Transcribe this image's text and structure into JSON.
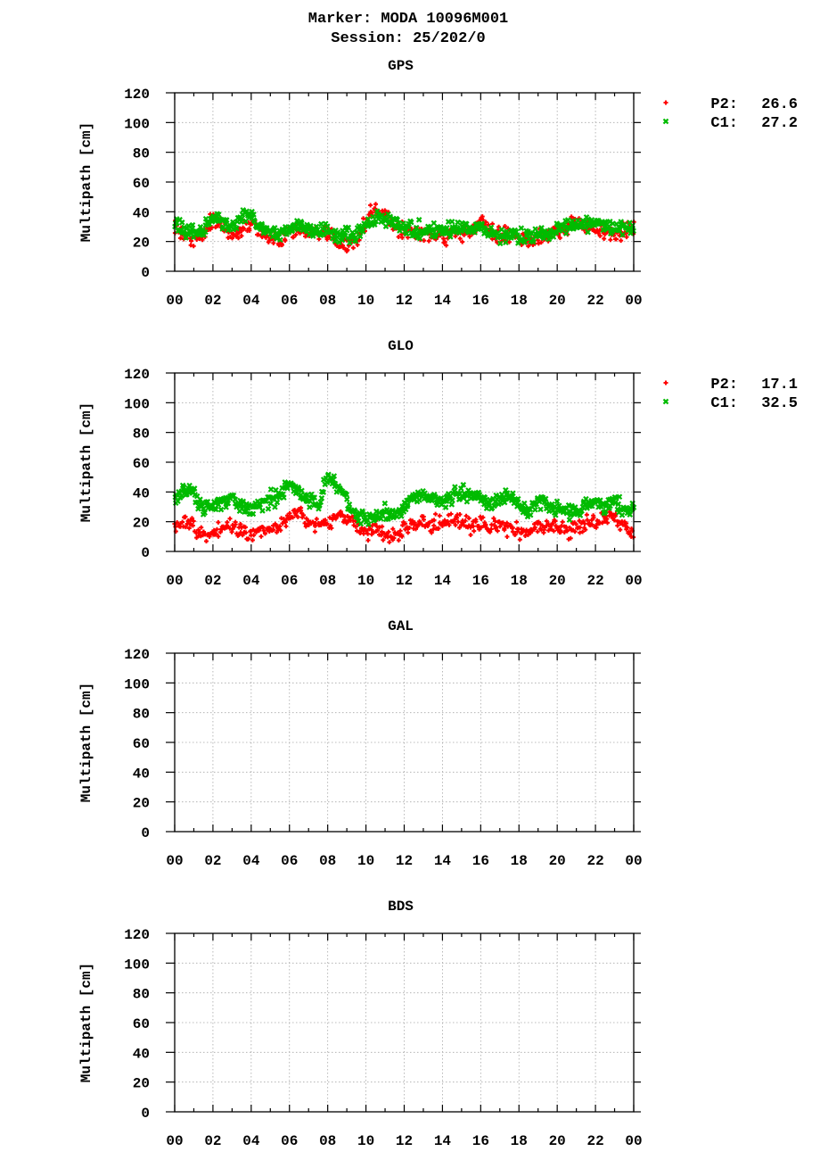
{
  "figure": {
    "title_line1": "Marker: MODA 10096M001",
    "title_line2": "Session: 25/202/0"
  },
  "chart_data": [
    {
      "type": "scatter",
      "title": "GPS",
      "xlabel": "",
      "ylabel": "Multipath [cm]",
      "xlim": [
        0,
        24
      ],
      "ylim": [
        0,
        120
      ],
      "x_tick_labels": [
        "00",
        "02",
        "04",
        "06",
        "08",
        "10",
        "12",
        "14",
        "16",
        "18",
        "20",
        "22",
        "00"
      ],
      "y_tick_labels": [
        "0",
        "20",
        "40",
        "60",
        "80",
        "100",
        "120"
      ],
      "grid": true,
      "legend_placement": "top-right outside",
      "series": [
        {
          "name": "P2",
          "label": "P2:",
          "rms": "26.6",
          "marker": "+",
          "color": "#ff0000",
          "x": [
            0.0,
            0.5,
            1.0,
            1.5,
            2.0,
            2.5,
            3.0,
            3.5,
            4.0,
            4.5,
            5.0,
            5.5,
            6.0,
            6.5,
            7.0,
            7.5,
            8.0,
            8.5,
            9.0,
            9.5,
            10.0,
            10.5,
            11.0,
            11.5,
            12.0,
            12.5,
            13.0,
            13.5,
            14.0,
            14.5,
            15.0,
            15.5,
            16.0,
            16.5,
            17.0,
            17.5,
            18.0,
            18.5,
            19.0,
            19.5,
            20.0,
            20.5,
            21.0,
            21.5,
            22.0,
            22.5,
            23.0,
            23.5,
            24.0
          ],
          "y": [
            30,
            25,
            22,
            24,
            35,
            31,
            24,
            28,
            33,
            26,
            22,
            20,
            25,
            27,
            26,
            24,
            26,
            20,
            18,
            18,
            34,
            42,
            38,
            30,
            27,
            26,
            25,
            24,
            22,
            25,
            26,
            25,
            36,
            28,
            24,
            25,
            22,
            20,
            22,
            24,
            27,
            30,
            34,
            30,
            28,
            26,
            24,
            26,
            30
          ]
        },
        {
          "name": "C1",
          "label": "C1:",
          "rms": "27.2",
          "marker": "x",
          "color": "#00bb00",
          "x": [
            0.0,
            0.5,
            1.0,
            1.5,
            2.0,
            2.5,
            3.0,
            3.5,
            4.0,
            4.5,
            5.0,
            5.5,
            6.0,
            6.5,
            7.0,
            7.5,
            8.0,
            8.5,
            9.0,
            9.5,
            10.0,
            10.5,
            11.0,
            11.5,
            12.0,
            12.5,
            13.0,
            13.5,
            14.0,
            14.5,
            15.0,
            15.5,
            16.0,
            16.5,
            17.0,
            17.5,
            18.0,
            18.5,
            19.0,
            19.5,
            20.0,
            20.5,
            21.0,
            21.5,
            22.0,
            22.5,
            23.0,
            23.5,
            24.0
          ],
          "y": [
            33,
            28,
            26,
            28,
            36,
            34,
            30,
            36,
            38,
            30,
            27,
            25,
            29,
            30,
            28,
            27,
            28,
            24,
            23,
            24,
            32,
            36,
            36,
            32,
            29,
            28,
            28,
            27,
            27,
            29,
            30,
            28,
            30,
            27,
            25,
            24,
            24,
            22,
            24,
            26,
            28,
            30,
            31,
            32,
            33,
            31,
            29,
            28,
            29
          ]
        }
      ]
    },
    {
      "type": "scatter",
      "title": "GLO",
      "xlabel": "",
      "ylabel": "Multipath [cm]",
      "xlim": [
        0,
        24
      ],
      "ylim": [
        0,
        120
      ],
      "x_tick_labels": [
        "00",
        "02",
        "04",
        "06",
        "08",
        "10",
        "12",
        "14",
        "16",
        "18",
        "20",
        "22",
        "00"
      ],
      "y_tick_labels": [
        "0",
        "20",
        "40",
        "60",
        "80",
        "100",
        "120"
      ],
      "grid": true,
      "legend_placement": "top-right outside",
      "series": [
        {
          "name": "P2",
          "label": "P2:",
          "rms": "17.1",
          "marker": "+",
          "color": "#ff0000",
          "x": [
            0.0,
            0.5,
            1.0,
            1.5,
            2.0,
            2.5,
            3.0,
            3.5,
            4.0,
            4.5,
            5.0,
            5.5,
            6.0,
            6.5,
            7.0,
            7.5,
            8.0,
            8.5,
            9.0,
            9.5,
            10.0,
            10.5,
            11.0,
            11.5,
            12.0,
            12.5,
            13.0,
            13.5,
            14.0,
            14.5,
            15.0,
            15.5,
            16.0,
            16.5,
            17.0,
            17.5,
            18.0,
            18.5,
            19.0,
            19.5,
            20.0,
            20.5,
            21.0,
            21.5,
            22.0,
            22.5,
            23.0,
            23.5,
            24.0
          ],
          "y": [
            17,
            20,
            16,
            10,
            12,
            16,
            18,
            15,
            11,
            14,
            16,
            18,
            24,
            27,
            20,
            18,
            20,
            24,
            22,
            18,
            12,
            14,
            12,
            10,
            14,
            18,
            20,
            18,
            19,
            20,
            21,
            17,
            18,
            16,
            18,
            16,
            14,
            12,
            16,
            18,
            15,
            14,
            16,
            19,
            20,
            22,
            22,
            17,
            12
          ]
        },
        {
          "name": "C1",
          "label": "C1:",
          "rms": "32.5",
          "marker": "x",
          "color": "#00bb00",
          "x": [
            0.0,
            0.5,
            1.0,
            1.5,
            2.0,
            2.5,
            3.0,
            3.5,
            4.0,
            4.5,
            5.0,
            5.5,
            6.0,
            6.5,
            7.0,
            7.5,
            8.0,
            8.5,
            9.0,
            9.5,
            10.0,
            10.5,
            11.0,
            11.5,
            12.0,
            12.5,
            13.0,
            13.5,
            14.0,
            14.5,
            15.0,
            15.5,
            16.0,
            16.5,
            17.0,
            17.5,
            18.0,
            18.5,
            19.0,
            19.5,
            20.0,
            20.5,
            21.0,
            21.5,
            22.0,
            22.5,
            23.0,
            23.5,
            24.0
          ],
          "y": [
            34,
            42,
            38,
            30,
            29,
            34,
            37,
            30,
            27,
            32,
            36,
            38,
            45,
            40,
            34,
            32,
            50,
            44,
            35,
            25,
            20,
            24,
            26,
            22,
            30,
            36,
            38,
            36,
            34,
            37,
            40,
            38,
            36,
            32,
            34,
            38,
            32,
            27,
            34,
            31,
            28,
            26,
            25,
            33,
            32,
            31,
            33,
            28,
            30
          ]
        }
      ]
    },
    {
      "type": "scatter",
      "title": "GAL",
      "xlabel": "",
      "ylabel": "Multipath [cm]",
      "xlim": [
        0,
        24
      ],
      "ylim": [
        0,
        120
      ],
      "x_tick_labels": [
        "00",
        "02",
        "04",
        "06",
        "08",
        "10",
        "12",
        "14",
        "16",
        "18",
        "20",
        "22",
        "00"
      ],
      "y_tick_labels": [
        "0",
        "20",
        "40",
        "60",
        "80",
        "100",
        "120"
      ],
      "grid": true,
      "series": []
    },
    {
      "type": "scatter",
      "title": "BDS",
      "xlabel": "",
      "ylabel": "Multipath [cm]",
      "xlim": [
        0,
        24
      ],
      "ylim": [
        0,
        120
      ],
      "x_tick_labels": [
        "00",
        "02",
        "04",
        "06",
        "08",
        "10",
        "12",
        "14",
        "16",
        "18",
        "20",
        "22",
        "00"
      ],
      "y_tick_labels": [
        "0",
        "20",
        "40",
        "60",
        "80",
        "100",
        "120"
      ],
      "grid": true,
      "series": []
    }
  ]
}
